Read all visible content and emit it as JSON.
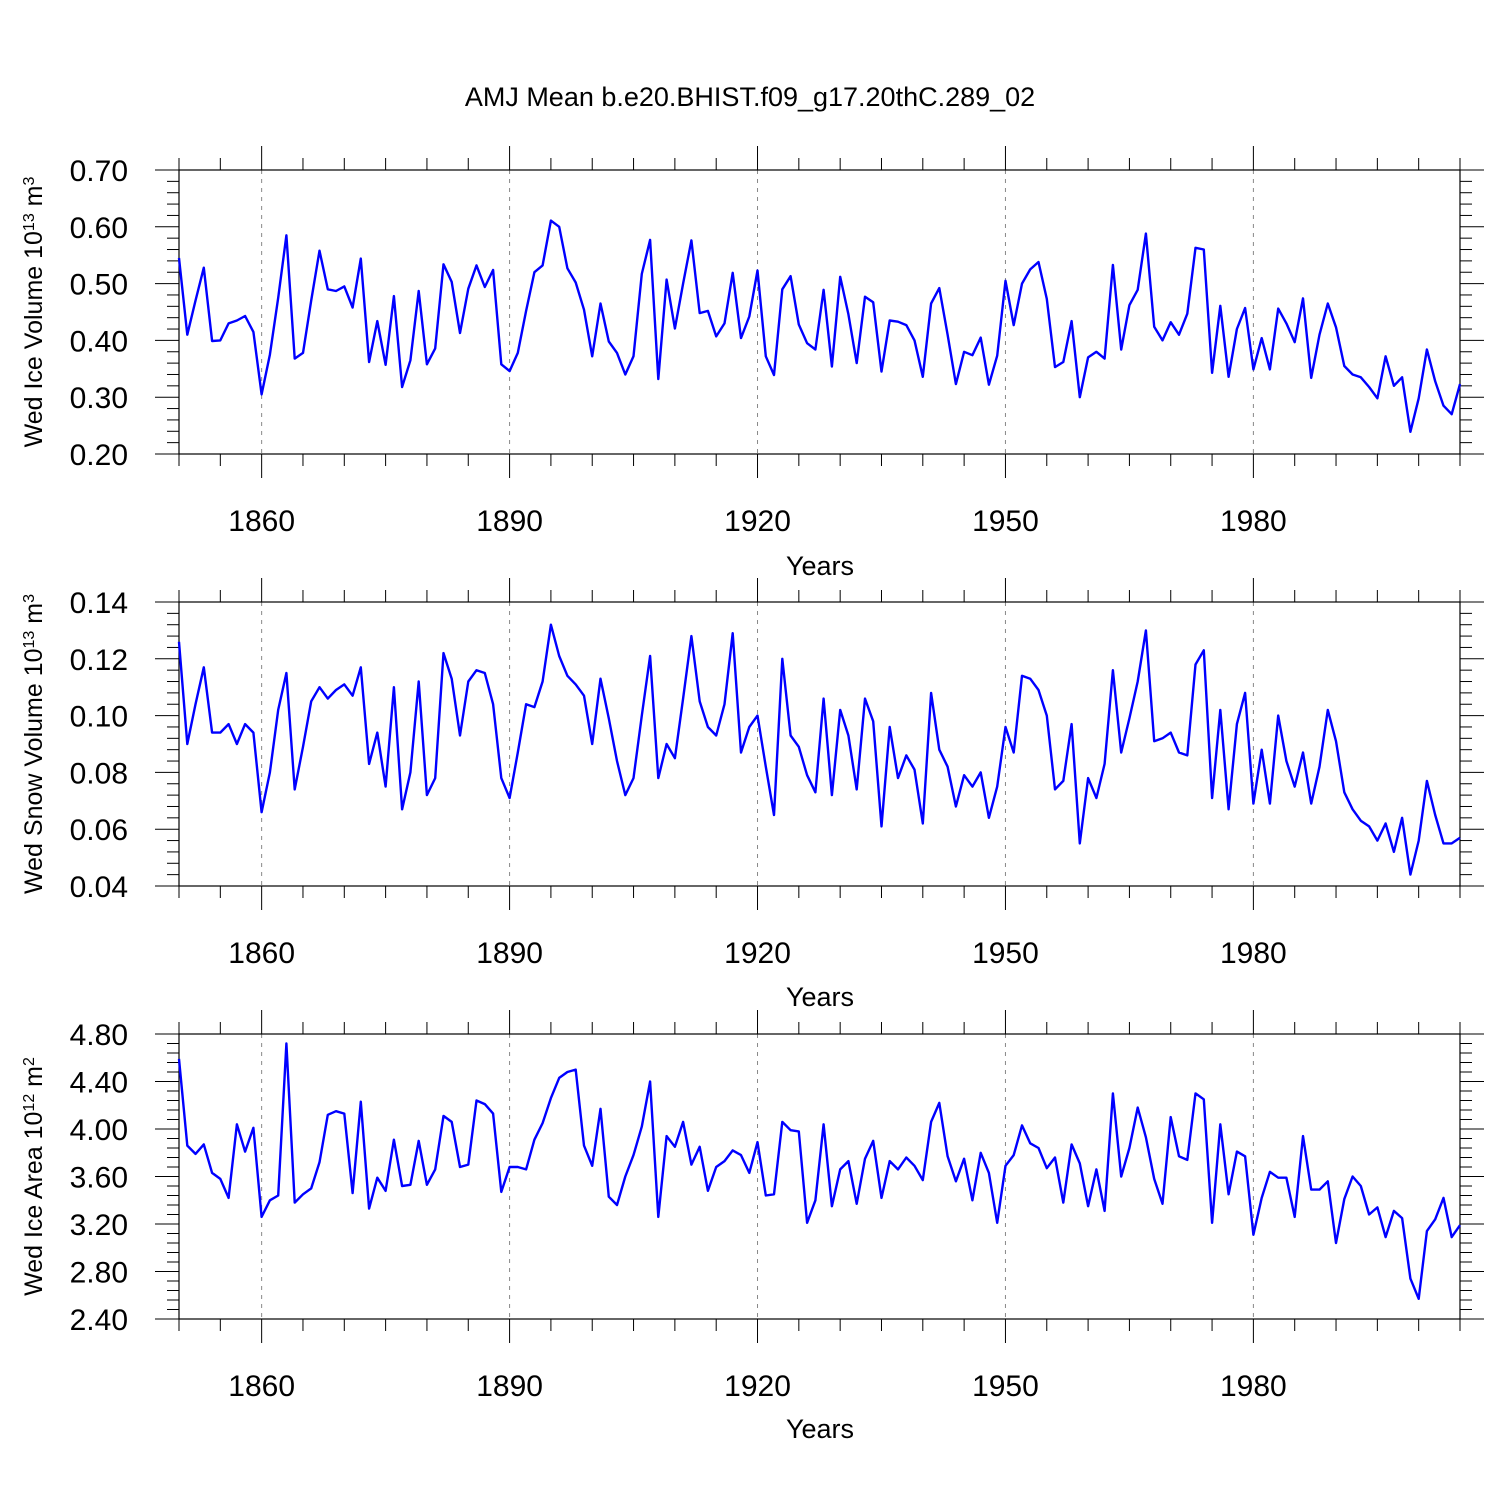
{
  "title": "AMJ Mean b.e20.BHIST.f09_g17.20thC.289_02",
  "chart_data": [
    {
      "type": "line",
      "ylabel": "Wed Ice Volume 10",
      "ylabel_exp": "13",
      "ylabel_unit": "m",
      "ylabel_unit_exp": "3",
      "xlabel": "Years",
      "xlim": [
        1850,
        2005
      ],
      "ylim": [
        0.2,
        0.7
      ],
      "yticks": [
        "0.20",
        "0.30",
        "0.40",
        "0.50",
        "0.60",
        "0.70"
      ],
      "xticks": [
        "1860",
        "1890",
        "1920",
        "1950",
        "1980"
      ],
      "line_color": "#0000ff",
      "grid": "dashed vertical at major x ticks",
      "x": [
        1850,
        1851,
        1852,
        1853,
        1854,
        1855,
        1856,
        1857,
        1858,
        1859,
        1860,
        1861,
        1862,
        1863,
        1864,
        1865,
        1866,
        1867,
        1868,
        1869,
        1870,
        1871,
        1872,
        1873,
        1874,
        1875,
        1876,
        1877,
        1878,
        1879,
        1880,
        1881,
        1882,
        1883,
        1884,
        1885,
        1886,
        1887,
        1888,
        1889,
        1890,
        1891,
        1892,
        1893,
        1894,
        1895,
        1896,
        1897,
        1898,
        1899,
        1900,
        1901,
        1902,
        1903,
        1904,
        1905,
        1906,
        1907,
        1908,
        1909,
        1910,
        1911,
        1912,
        1913,
        1914,
        1915,
        1916,
        1917,
        1918,
        1919,
        1920,
        1921,
        1922,
        1923,
        1924,
        1925,
        1926,
        1927,
        1928,
        1929,
        1930,
        1931,
        1932,
        1933,
        1934,
        1935,
        1936,
        1937,
        1938,
        1939,
        1940,
        1941,
        1942,
        1943,
        1944,
        1945,
        1946,
        1947,
        1948,
        1949,
        1950,
        1951,
        1952,
        1953,
        1954,
        1955,
        1956,
        1957,
        1958,
        1959,
        1960,
        1961,
        1962,
        1963,
        1964,
        1965,
        1966,
        1967,
        1968,
        1969,
        1970,
        1971,
        1972,
        1973,
        1974,
        1975,
        1976,
        1977,
        1978,
        1979,
        1980,
        1981,
        1982,
        1983,
        1984,
        1985,
        1986,
        1987,
        1988,
        1989,
        1990,
        1991,
        1992,
        1993,
        1994,
        1995,
        1996,
        1997,
        1998,
        1999,
        2000,
        2001,
        2002,
        2003,
        2004,
        2005
      ],
      "values": [
        0.545,
        0.41,
        0.47,
        0.528,
        0.399,
        0.4,
        0.43,
        0.435,
        0.443,
        0.415,
        0.305,
        0.375,
        0.475,
        0.585,
        0.368,
        0.378,
        0.47,
        0.558,
        0.49,
        0.487,
        0.495,
        0.458,
        0.544,
        0.362,
        0.434,
        0.357,
        0.478,
        0.318,
        0.365,
        0.487,
        0.358,
        0.386,
        0.534,
        0.503,
        0.413,
        0.491,
        0.532,
        0.494,
        0.524,
        0.358,
        0.346,
        0.378,
        0.452,
        0.52,
        0.532,
        0.611,
        0.6,
        0.527,
        0.502,
        0.454,
        0.372,
        0.465,
        0.398,
        0.378,
        0.34,
        0.372,
        0.517,
        0.577,
        0.332,
        0.507,
        0.421,
        0.5,
        0.576,
        0.448,
        0.452,
        0.407,
        0.43,
        0.519,
        0.404,
        0.442,
        0.523,
        0.372,
        0.339,
        0.49,
        0.513,
        0.428,
        0.395,
        0.384,
        0.489,
        0.354,
        0.512,
        0.446,
        0.36,
        0.477,
        0.467,
        0.345,
        0.435,
        0.433,
        0.427,
        0.4,
        0.336,
        0.465,
        0.492,
        0.41,
        0.323,
        0.38,
        0.374,
        0.405,
        0.322,
        0.373,
        0.505,
        0.427,
        0.5,
        0.525,
        0.538,
        0.473,
        0.353,
        0.362,
        0.434,
        0.3,
        0.37,
        0.38,
        0.368,
        0.533,
        0.384,
        0.462,
        0.489,
        0.588,
        0.424,
        0.4,
        0.432,
        0.41,
        0.447,
        0.563,
        0.56,
        0.343,
        0.461,
        0.336,
        0.42,
        0.457,
        0.349,
        0.404,
        0.349,
        0.456,
        0.43,
        0.397,
        0.474,
        0.334,
        0.41,
        0.465,
        0.423,
        0.355,
        0.34,
        0.335,
        0.318,
        0.298,
        0.372,
        0.32,
        0.335,
        0.239,
        0.298,
        0.384,
        0.328,
        0.285,
        0.27,
        0.323
      ]
    },
    {
      "type": "line",
      "ylabel": "Wed Snow Volume 10",
      "ylabel_exp": "13",
      "ylabel_unit": "m",
      "ylabel_unit_exp": "3",
      "xlabel": "Years",
      "xlim": [
        1850,
        2005
      ],
      "ylim": [
        0.04,
        0.14
      ],
      "yticks": [
        "0.04",
        "0.06",
        "0.08",
        "0.10",
        "0.12",
        "0.14"
      ],
      "xticks": [
        "1860",
        "1890",
        "1920",
        "1950",
        "1980"
      ],
      "line_color": "#0000ff",
      "grid": "dashed vertical at major x ticks",
      "x": [
        1850,
        1851,
        1852,
        1853,
        1854,
        1855,
        1856,
        1857,
        1858,
        1859,
        1860,
        1861,
        1862,
        1863,
        1864,
        1865,
        1866,
        1867,
        1868,
        1869,
        1870,
        1871,
        1872,
        1873,
        1874,
        1875,
        1876,
        1877,
        1878,
        1879,
        1880,
        1881,
        1882,
        1883,
        1884,
        1885,
        1886,
        1887,
        1888,
        1889,
        1890,
        1891,
        1892,
        1893,
        1894,
        1895,
        1896,
        1897,
        1898,
        1899,
        1900,
        1901,
        1902,
        1903,
        1904,
        1905,
        1906,
        1907,
        1908,
        1909,
        1910,
        1911,
        1912,
        1913,
        1914,
        1915,
        1916,
        1917,
        1918,
        1919,
        1920,
        1921,
        1922,
        1923,
        1924,
        1925,
        1926,
        1927,
        1928,
        1929,
        1930,
        1931,
        1932,
        1933,
        1934,
        1935,
        1936,
        1937,
        1938,
        1939,
        1940,
        1941,
        1942,
        1943,
        1944,
        1945,
        1946,
        1947,
        1948,
        1949,
        1950,
        1951,
        1952,
        1953,
        1954,
        1955,
        1956,
        1957,
        1958,
        1959,
        1960,
        1961,
        1962,
        1963,
        1964,
        1965,
        1966,
        1967,
        1968,
        1969,
        1970,
        1971,
        1972,
        1973,
        1974,
        1975,
        1976,
        1977,
        1978,
        1979,
        1980,
        1981,
        1982,
        1983,
        1984,
        1985,
        1986,
        1987,
        1988,
        1989,
        1990,
        1991,
        1992,
        1993,
        1994,
        1995,
        1996,
        1997,
        1998,
        1999,
        2000,
        2001,
        2002,
        2003,
        2004,
        2005
      ],
      "values": [
        0.126,
        0.09,
        0.104,
        0.117,
        0.094,
        0.094,
        0.097,
        0.09,
        0.097,
        0.094,
        0.066,
        0.08,
        0.102,
        0.115,
        0.074,
        0.089,
        0.105,
        0.11,
        0.106,
        0.109,
        0.111,
        0.107,
        0.117,
        0.083,
        0.094,
        0.075,
        0.11,
        0.067,
        0.08,
        0.112,
        0.072,
        0.078,
        0.122,
        0.113,
        0.093,
        0.112,
        0.116,
        0.115,
        0.104,
        0.078,
        0.071,
        0.087,
        0.104,
        0.103,
        0.112,
        0.132,
        0.121,
        0.114,
        0.111,
        0.107,
        0.09,
        0.113,
        0.099,
        0.084,
        0.072,
        0.078,
        0.1,
        0.121,
        0.078,
        0.09,
        0.085,
        0.106,
        0.128,
        0.105,
        0.096,
        0.093,
        0.104,
        0.129,
        0.087,
        0.096,
        0.1,
        0.082,
        0.065,
        0.12,
        0.093,
        0.089,
        0.079,
        0.073,
        0.106,
        0.072,
        0.102,
        0.093,
        0.074,
        0.106,
        0.098,
        0.061,
        0.096,
        0.078,
        0.086,
        0.081,
        0.062,
        0.108,
        0.088,
        0.082,
        0.068,
        0.079,
        0.075,
        0.08,
        0.064,
        0.075,
        0.096,
        0.087,
        0.114,
        0.113,
        0.109,
        0.1,
        0.074,
        0.077,
        0.097,
        0.055,
        0.078,
        0.071,
        0.083,
        0.116,
        0.087,
        0.099,
        0.112,
        0.13,
        0.091,
        0.092,
        0.094,
        0.087,
        0.086,
        0.118,
        0.123,
        0.071,
        0.102,
        0.067,
        0.097,
        0.108,
        0.069,
        0.088,
        0.069,
        0.1,
        0.084,
        0.075,
        0.087,
        0.069,
        0.082,
        0.102,
        0.091,
        0.073,
        0.067,
        0.063,
        0.061,
        0.056,
        0.062,
        0.052,
        0.064,
        0.044,
        0.056,
        0.077,
        0.065,
        0.055,
        0.055,
        0.057
      ]
    },
    {
      "type": "line",
      "ylabel": "Wed Ice Area 10",
      "ylabel_exp": "12",
      "ylabel_unit": "m",
      "ylabel_unit_exp": "2",
      "xlabel": "Years",
      "xlim": [
        1850,
        2005
      ],
      "ylim": [
        2.4,
        4.8
      ],
      "yticks": [
        "2.40",
        "2.80",
        "3.20",
        "3.60",
        "4.00",
        "4.40",
        "4.80"
      ],
      "xticks": [
        "1860",
        "1890",
        "1920",
        "1950",
        "1980"
      ],
      "line_color": "#0000ff",
      "grid": "dashed vertical at major x ticks",
      "x": [
        1850,
        1851,
        1852,
        1853,
        1854,
        1855,
        1856,
        1857,
        1858,
        1859,
        1860,
        1861,
        1862,
        1863,
        1864,
        1865,
        1866,
        1867,
        1868,
        1869,
        1870,
        1871,
        1872,
        1873,
        1874,
        1875,
        1876,
        1877,
        1878,
        1879,
        1880,
        1881,
        1882,
        1883,
        1884,
        1885,
        1886,
        1887,
        1888,
        1889,
        1890,
        1891,
        1892,
        1893,
        1894,
        1895,
        1896,
        1897,
        1898,
        1899,
        1900,
        1901,
        1902,
        1903,
        1904,
        1905,
        1906,
        1907,
        1908,
        1909,
        1910,
        1911,
        1912,
        1913,
        1914,
        1915,
        1916,
        1917,
        1918,
        1919,
        1920,
        1921,
        1922,
        1923,
        1924,
        1925,
        1926,
        1927,
        1928,
        1929,
        1930,
        1931,
        1932,
        1933,
        1934,
        1935,
        1936,
        1937,
        1938,
        1939,
        1940,
        1941,
        1942,
        1943,
        1944,
        1945,
        1946,
        1947,
        1948,
        1949,
        1950,
        1951,
        1952,
        1953,
        1954,
        1955,
        1956,
        1957,
        1958,
        1959,
        1960,
        1961,
        1962,
        1963,
        1964,
        1965,
        1966,
        1967,
        1968,
        1969,
        1970,
        1971,
        1972,
        1973,
        1974,
        1975,
        1976,
        1977,
        1978,
        1979,
        1980,
        1981,
        1982,
        1983,
        1984,
        1985,
        1986,
        1987,
        1988,
        1989,
        1990,
        1991,
        1992,
        1993,
        1994,
        1995,
        1996,
        1997,
        1998,
        1999,
        2000,
        2001,
        2002,
        2003,
        2004,
        2005
      ],
      "values": [
        4.59,
        3.86,
        3.79,
        3.87,
        3.63,
        3.58,
        3.42,
        4.04,
        3.81,
        4.01,
        3.26,
        3.4,
        3.44,
        4.72,
        3.38,
        3.45,
        3.5,
        3.72,
        4.12,
        4.15,
        4.13,
        3.46,
        4.23,
        3.33,
        3.59,
        3.48,
        3.91,
        3.52,
        3.53,
        3.9,
        3.53,
        3.66,
        4.11,
        4.06,
        3.68,
        3.7,
        4.24,
        4.21,
        4.13,
        3.47,
        3.68,
        3.68,
        3.66,
        3.91,
        4.05,
        4.26,
        4.43,
        4.48,
        4.5,
        3.86,
        3.69,
        4.17,
        3.43,
        3.36,
        3.6,
        3.78,
        4.02,
        4.4,
        3.26,
        3.94,
        3.85,
        4.06,
        3.7,
        3.85,
        3.48,
        3.68,
        3.73,
        3.82,
        3.78,
        3.63,
        3.89,
        3.44,
        3.45,
        4.06,
        3.99,
        3.98,
        3.21,
        3.4,
        4.04,
        3.35,
        3.66,
        3.73,
        3.37,
        3.75,
        3.9,
        3.42,
        3.73,
        3.66,
        3.76,
        3.69,
        3.57,
        4.06,
        4.22,
        3.77,
        3.56,
        3.75,
        3.4,
        3.8,
        3.63,
        3.21,
        3.69,
        3.78,
        4.03,
        3.88,
        3.84,
        3.67,
        3.76,
        3.38,
        3.87,
        3.71,
        3.35,
        3.66,
        3.31,
        4.3,
        3.6,
        3.84,
        4.18,
        3.93,
        3.58,
        3.37,
        4.1,
        3.77,
        3.74,
        4.3,
        4.25,
        3.21,
        4.04,
        3.45,
        3.81,
        3.77,
        3.11,
        3.42,
        3.64,
        3.59,
        3.59,
        3.26,
        3.94,
        3.49,
        3.49,
        3.56,
        3.04,
        3.41,
        3.6,
        3.52,
        3.28,
        3.34,
        3.09,
        3.31,
        3.25,
        2.74,
        2.57,
        3.14,
        3.24,
        3.42,
        3.09,
        3.19
      ]
    }
  ]
}
